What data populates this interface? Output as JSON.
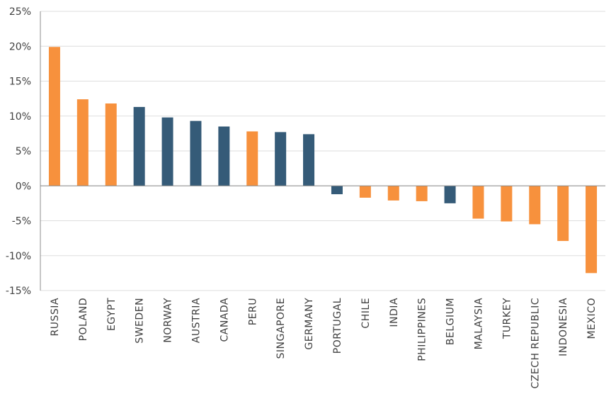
{
  "chart_data": {
    "type": "bar",
    "title": "",
    "xlabel": "",
    "ylabel": "",
    "ylim": [
      -15,
      25
    ],
    "yticks": [
      25,
      20,
      15,
      10,
      5,
      0,
      -5,
      -10,
      -15
    ],
    "ytick_labels": [
      "25%",
      "20%",
      "15%",
      "10%",
      "5%",
      "0%",
      "-5%",
      "-10%",
      "-15%"
    ],
    "grid": "horizontal",
    "categories": [
      "RUSSIA",
      "POLAND",
      "EGYPT",
      "SWEDEN",
      "NORWAY",
      "AUSTRIA",
      "CANADA",
      "PERU",
      "SINGAPORE",
      "GERMANY",
      "PORTUGAL",
      "CHILE",
      "INDIA",
      "PHILIPPINES",
      "BELGIUM",
      "MALAYSIA",
      "TURKEY",
      "CZECH REPUBLIC",
      "INDONESIA",
      "MEXICO"
    ],
    "values": [
      19.9,
      12.4,
      11.8,
      11.3,
      9.8,
      9.3,
      8.5,
      7.8,
      7.7,
      7.4,
      -1.2,
      -1.7,
      -2.1,
      -2.2,
      -2.5,
      -4.7,
      -5.1,
      -5.5,
      -7.9,
      -12.5
    ],
    "bar_colors": [
      "orange",
      "orange",
      "orange",
      "navy",
      "navy",
      "navy",
      "navy",
      "orange",
      "navy",
      "navy",
      "navy",
      "orange",
      "orange",
      "orange",
      "navy",
      "orange",
      "orange",
      "orange",
      "orange",
      "orange"
    ],
    "colors": {
      "orange": "#F7913D",
      "navy": "#355B78",
      "grid": "#DEDEDE",
      "axis": "#8C8C8C",
      "text": "#404040"
    }
  }
}
